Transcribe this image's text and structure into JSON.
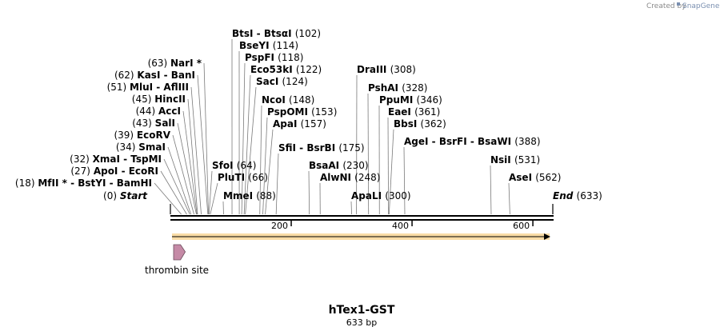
{
  "brand": {
    "created_by": "Created by",
    "app_name": "SnapGene"
  },
  "map": {
    "title": "hTex1-GST",
    "length_label": "633 bp",
    "length": 633
  },
  "axis": {
    "ticks": [
      {
        "value": 200,
        "label": "200"
      },
      {
        "value": 400,
        "label": "400"
      },
      {
        "value": 600,
        "label": "600"
      }
    ]
  },
  "features": [
    {
      "name": "thrombin site",
      "color": "#c58aa6",
      "start": 1,
      "end": 18
    }
  ],
  "orf": {
    "color": "#f5c56a",
    "start": 1,
    "end": 633
  },
  "sites": [
    {
      "label": "Start",
      "pos": "(0)",
      "at": 0,
      "italic": true
    },
    {
      "label": "MfII * - BstYI - BamHI",
      "pos": "(18)",
      "at": 18
    },
    {
      "label": "ApoI - EcoRI",
      "pos": "(27)",
      "at": 27
    },
    {
      "label": "XmaI - TspMI",
      "pos": "(32)",
      "at": 32
    },
    {
      "label": "SmaI",
      "pos": "(34)",
      "at": 34
    },
    {
      "label": "EcoRV",
      "pos": "(39)",
      "at": 39
    },
    {
      "label": "SalI",
      "pos": "(43)",
      "at": 43
    },
    {
      "label": "AccI",
      "pos": "(44)",
      "at": 44
    },
    {
      "label": "HincII",
      "pos": "(45)",
      "at": 45
    },
    {
      "label": "MluI - AflIII",
      "pos": "(51)",
      "at": 51
    },
    {
      "label": "KasI - BanI",
      "pos": "(62)",
      "at": 62
    },
    {
      "label": "NarI *",
      "pos": "(63)",
      "at": 63
    },
    {
      "label": "SfoI",
      "pos": "(64)",
      "at": 64
    },
    {
      "label": "PluTI",
      "pos": "(66)",
      "at": 66
    },
    {
      "label": "MmeI",
      "pos": "(88)",
      "at": 88
    },
    {
      "label": "BtsI - BtsαI",
      "pos": "(102)",
      "at": 102
    },
    {
      "label": "BseYI",
      "pos": "(114)",
      "at": 114
    },
    {
      "label": "PspFI",
      "pos": "(118)",
      "at": 118
    },
    {
      "label": "Eco53kI",
      "pos": "(122)",
      "at": 122
    },
    {
      "label": "SacI",
      "pos": "(124)",
      "at": 124
    },
    {
      "label": "NcoI",
      "pos": "(148)",
      "at": 148
    },
    {
      "label": "PspOMI",
      "pos": "(153)",
      "at": 153
    },
    {
      "label": "ApaI",
      "pos": "(157)",
      "at": 157
    },
    {
      "label": "SfiI - BsrBI",
      "pos": "(175)",
      "at": 175
    },
    {
      "label": "BsaAI",
      "pos": "(230)",
      "at": 230
    },
    {
      "label": "AlwNI",
      "pos": "(248)",
      "at": 248
    },
    {
      "label": "ApaLI",
      "pos": "(300)",
      "at": 300
    },
    {
      "label": "DraIII",
      "pos": "(308)",
      "at": 308
    },
    {
      "label": "PshAI",
      "pos": "(328)",
      "at": 328
    },
    {
      "label": "PpuMI",
      "pos": "(346)",
      "at": 346
    },
    {
      "label": "EaeI",
      "pos": "(361)",
      "at": 361
    },
    {
      "label": "BbsI",
      "pos": "(362)",
      "at": 362
    },
    {
      "label": "AgeI - BsrFI - BsaWI",
      "pos": "(388)",
      "at": 388
    },
    {
      "label": "NsiI",
      "pos": "(531)",
      "at": 531
    },
    {
      "label": "AseI",
      "pos": "(562)",
      "at": 562
    },
    {
      "label": "End",
      "pos": "(633)",
      "at": 633,
      "italic": true
    }
  ]
}
